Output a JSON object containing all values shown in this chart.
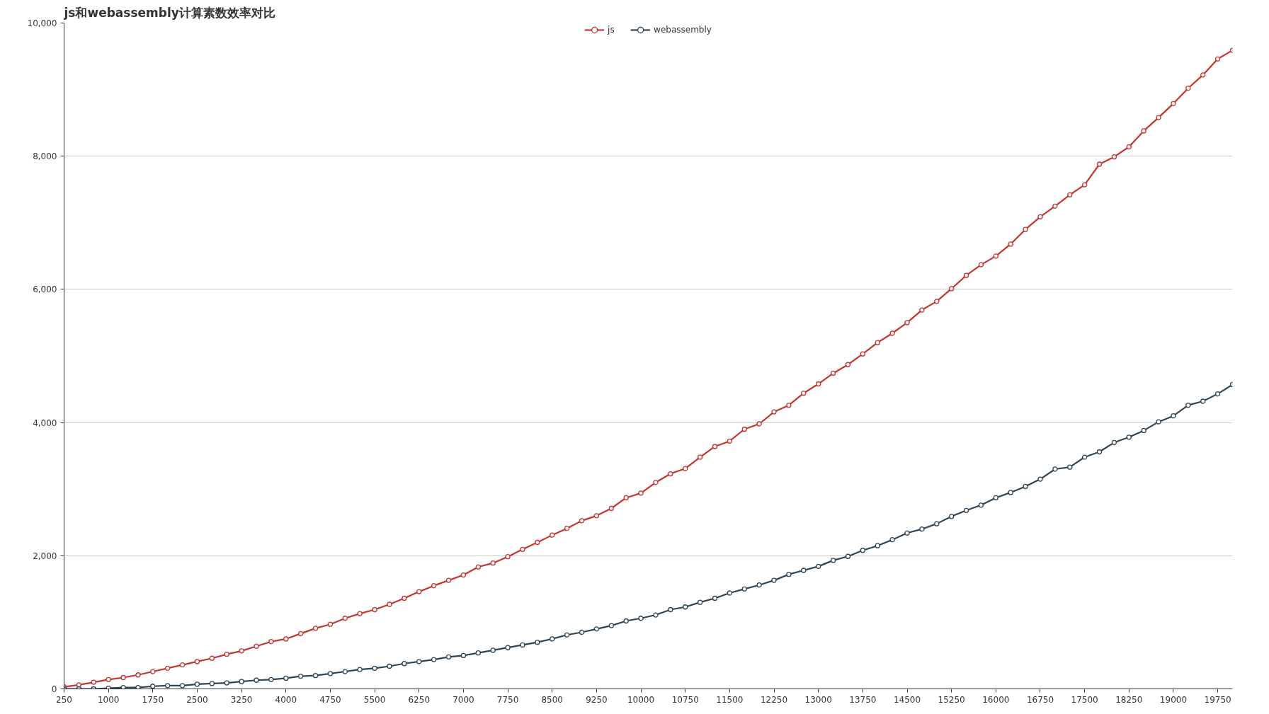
{
  "chart_data": {
    "type": "line",
    "title": "js和webassembly计算素数效率对比",
    "categories": [
      "250",
      null,
      null,
      "1000",
      null,
      null,
      "1750",
      null,
      null,
      "2500",
      null,
      null,
      "3250",
      null,
      null,
      "4000",
      null,
      null,
      "4750",
      null,
      null,
      "5500",
      null,
      null,
      "6250",
      null,
      null,
      "7000",
      null,
      null,
      "7750",
      null,
      null,
      "8500",
      null,
      null,
      "9250",
      null,
      null,
      "10000",
      null,
      null,
      "10750",
      null,
      null,
      "11500",
      null,
      null,
      "12250",
      null,
      null,
      "13000",
      null,
      null,
      "13750",
      null,
      null,
      "14500",
      null,
      null,
      "15250",
      null,
      null,
      "16000",
      null,
      null,
      "16750",
      null,
      null,
      "17500",
      null,
      null,
      "18250",
      null,
      null,
      "19000",
      null,
      null,
      "19750",
      null
    ],
    "series": [
      {
        "name": "js",
        "color": "#c23531",
        "values": [
          30,
          60,
          100,
          140,
          170,
          210,
          260,
          310,
          360,
          410,
          460,
          520,
          570,
          640,
          710,
          750,
          830,
          910,
          970,
          1060,
          1130,
          1190,
          1270,
          1360,
          1460,
          1550,
          1630,
          1710,
          1830,
          1890,
          1985,
          2095,
          2200,
          2310,
          2410,
          2525,
          2600,
          2710,
          2870,
          2940,
          3100,
          3230,
          3310,
          3480,
          3640,
          3720,
          3900,
          3980,
          4160,
          4260,
          4440,
          4580,
          4740,
          4870,
          5030,
          5200,
          5340,
          5500,
          5690,
          5820,
          6010,
          6210,
          6370,
          6500,
          6680,
          6900,
          7090,
          7250,
          7420,
          7570,
          7880,
          7990,
          8140,
          8380,
          8580,
          8790,
          9020,
          9220,
          9460,
          9590
        ]
      },
      {
        "name": "webassembly",
        "color": "#2f4554",
        "values": [
          0,
          0,
          0,
          10,
          20,
          20,
          40,
          50,
          50,
          70,
          80,
          90,
          110,
          130,
          140,
          160,
          190,
          200,
          230,
          260,
          290,
          310,
          340,
          380,
          410,
          440,
          480,
          500,
          540,
          580,
          620,
          660,
          700,
          750,
          810,
          850,
          900,
          950,
          1020,
          1060,
          1110,
          1190,
          1230,
          1300,
          1360,
          1440,
          1500,
          1560,
          1630,
          1720,
          1780,
          1840,
          1930,
          1990,
          2080,
          2150,
          2240,
          2340,
          2400,
          2480,
          2590,
          2680,
          2760,
          2870,
          2950,
          3040,
          3150,
          3300,
          3330,
          3480,
          3560,
          3700,
          3780,
          3880,
          4010,
          4100,
          4260,
          4320,
          4430,
          4570
        ]
      }
    ],
    "ylim": [
      0,
      10000
    ],
    "yticks": [
      0,
      {
        "value": 2000,
        "label": "2,000"
      },
      {
        "value": 4000,
        "label": "4,000"
      },
      {
        "value": 6000,
        "label": "6,000"
      },
      {
        "value": 8000,
        "label": "8,000"
      },
      {
        "value": 10000,
        "label": "10,000"
      }
    ],
    "grid": "y",
    "legend": "top",
    "marker": "circle",
    "line_style": "solid"
  }
}
